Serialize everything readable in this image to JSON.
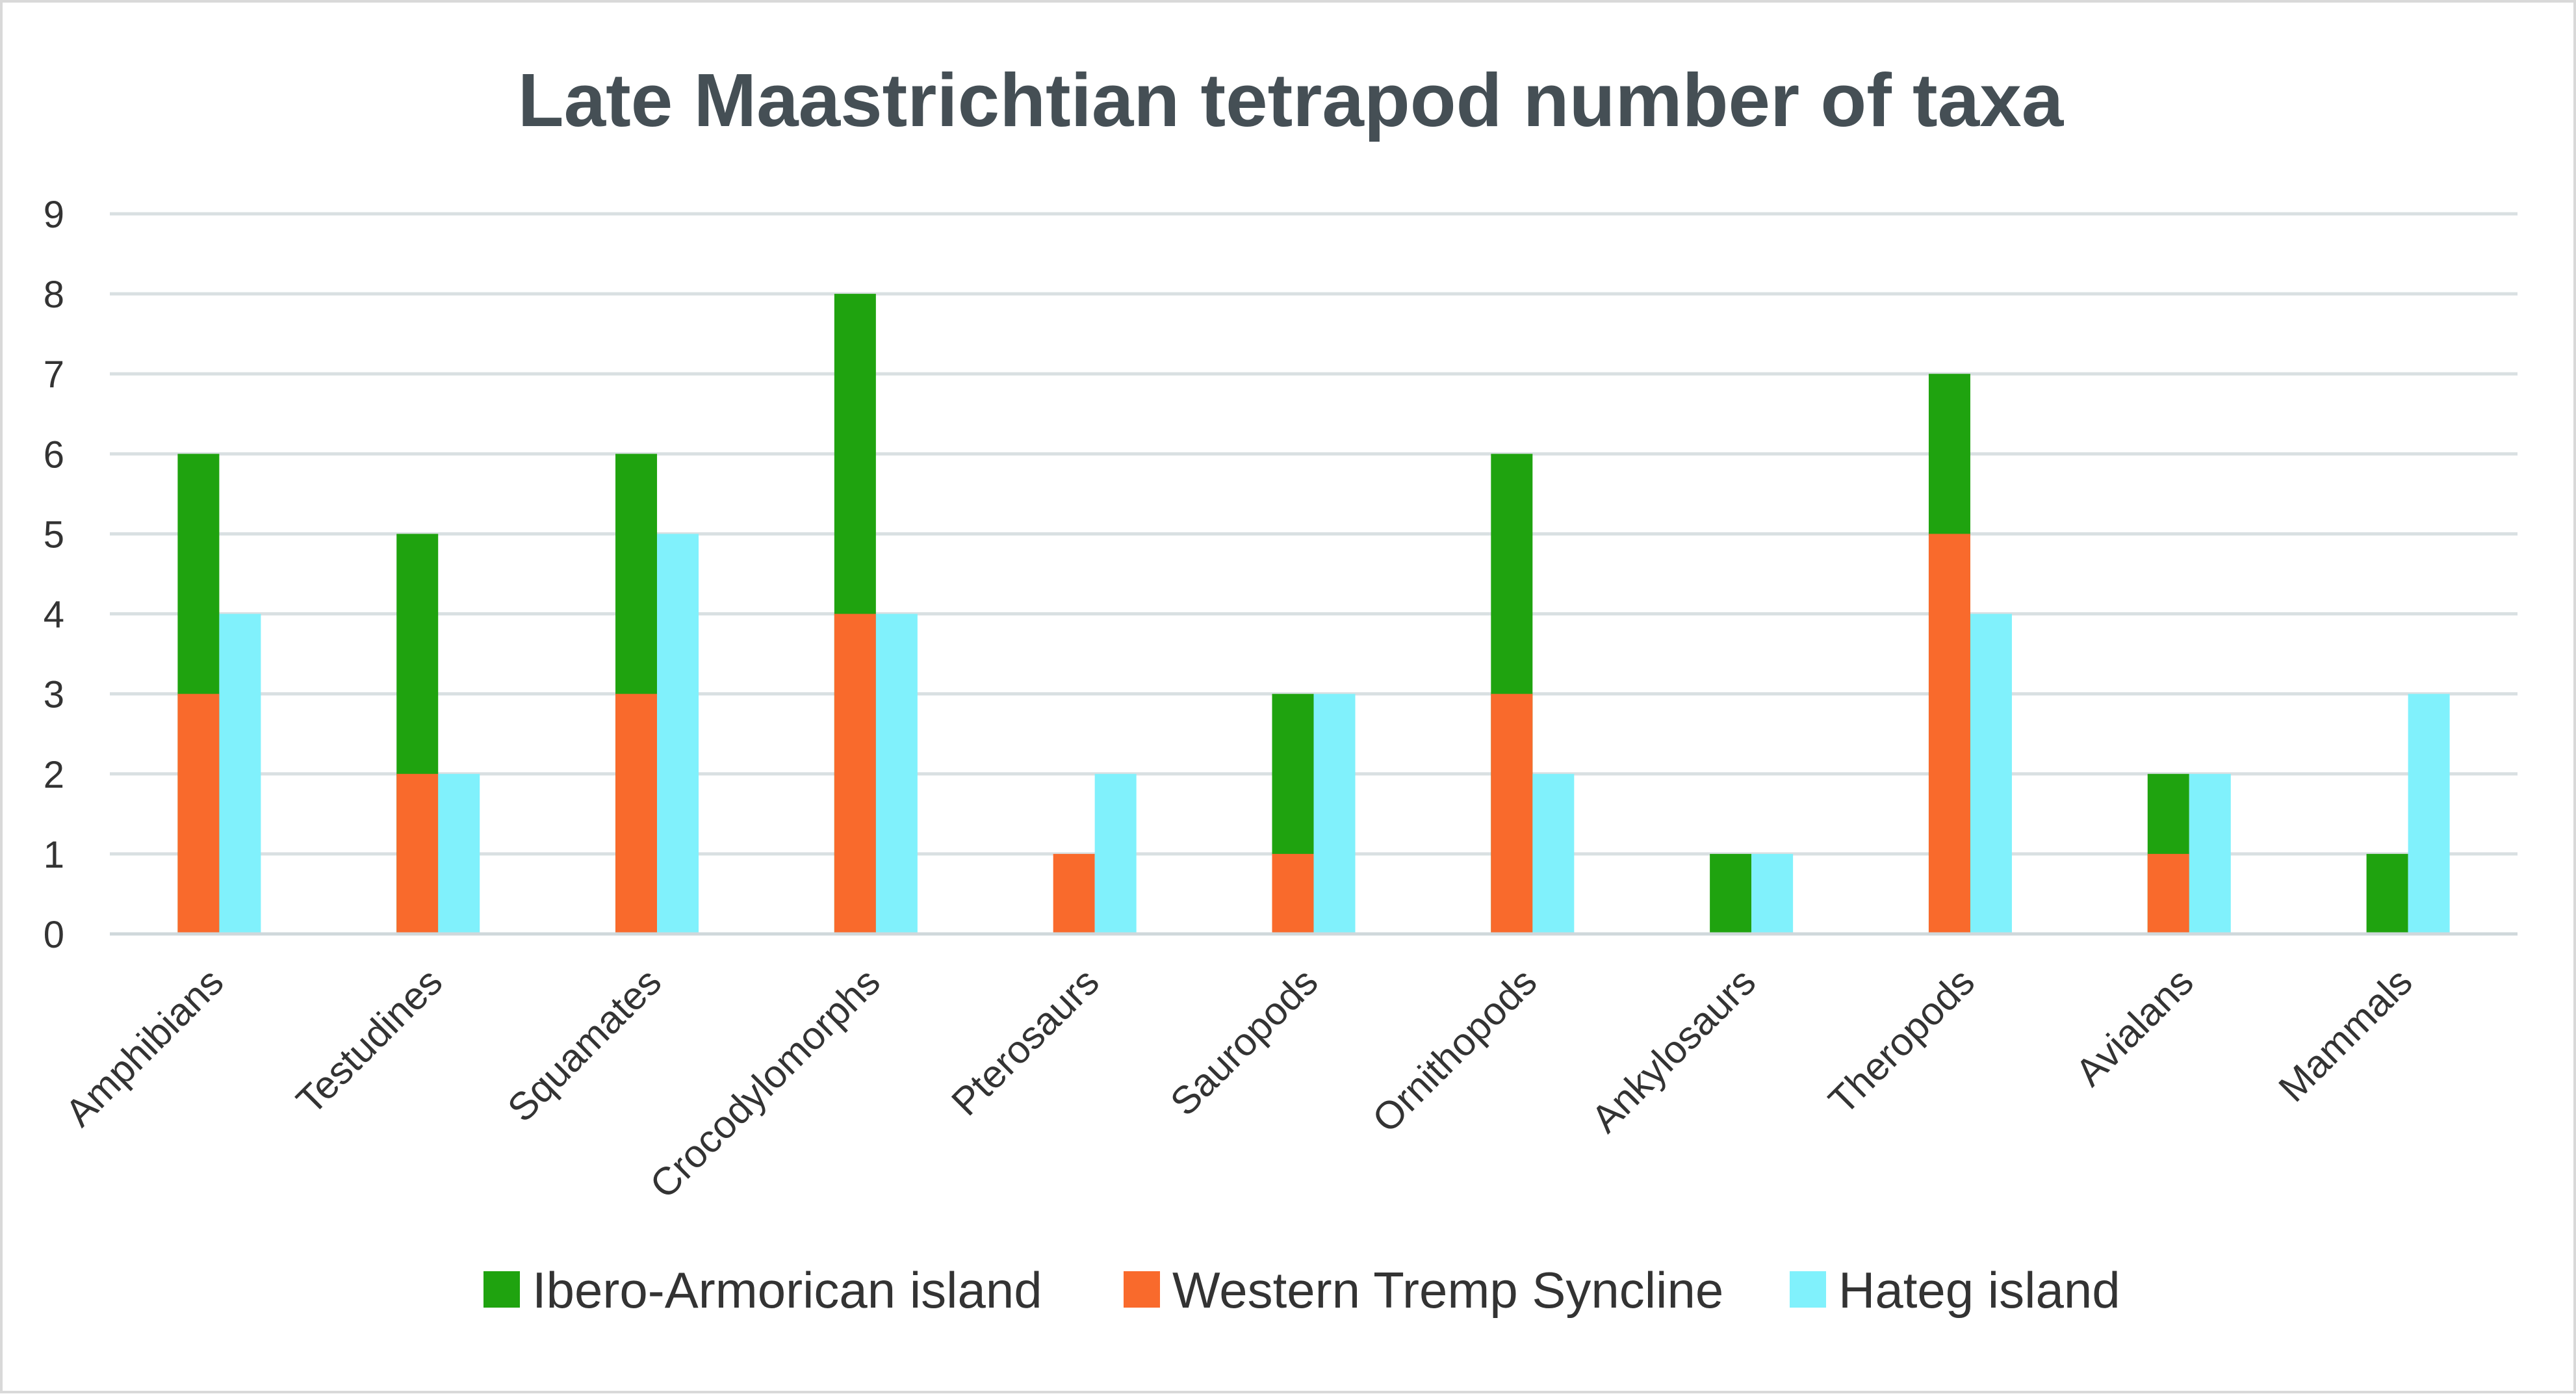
{
  "chart_data": {
    "type": "bar",
    "title": "Late Maastrichtian tetrapod number of taxa",
    "xlabel": "",
    "ylabel": "",
    "ylim": [
      0,
      9
    ],
    "yticks": [
      "0",
      "1",
      "2",
      "3",
      "4",
      "5",
      "6",
      "7",
      "8",
      "9"
    ],
    "grid": true,
    "legend_position": "bottom",
    "categories": [
      "Amphibians",
      "Testudines",
      "Squamates",
      "Crocodylomorphs",
      "Pterosaurs",
      "Sauropods",
      "Ornithopods",
      "Ankylosaurs",
      "Theropods",
      "Avialans",
      "Mammals"
    ],
    "series": [
      {
        "name": "Ibero-Armorican island",
        "stack": "A",
        "color": "#1fa30f",
        "values": [
          6,
          5,
          6,
          8,
          0,
          3,
          6,
          1,
          7,
          2,
          1
        ]
      },
      {
        "name": "Western Tremp Syncline",
        "stack": "A",
        "color": "#f96a2c",
        "values": [
          3,
          2,
          3,
          4,
          1,
          1,
          3,
          0,
          5,
          1,
          0
        ]
      },
      {
        "name": "Hateg island",
        "stack": "B",
        "color": "#80f1fc",
        "values": [
          4,
          2,
          5,
          4,
          2,
          3,
          2,
          1,
          4,
          2,
          3
        ]
      }
    ],
    "note": "Ibero-Armorican island and Western Tremp Syncline values are read as total bar heights; the Western Tremp Syncline portion is drawn overlaid at the base of the same column."
  }
}
